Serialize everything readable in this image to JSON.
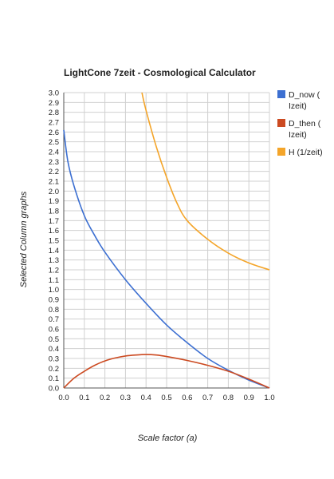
{
  "chart_data": {
    "type": "line",
    "title": "LightCone 7zeit - Cosmological Calculator",
    "xlabel": "Scale factor (a)",
    "ylabel": "Selected Column graphs",
    "xlim": [
      0,
      1
    ],
    "ylim": [
      0,
      3
    ],
    "x_ticks": [
      "0.0",
      "0.1",
      "0.2",
      "0.3",
      "0.4",
      "0.5",
      "0.6",
      "0.7",
      "0.8",
      "0.9",
      "1.0"
    ],
    "y_ticks": [
      "0.0",
      "0.1",
      "0.2",
      "0.3",
      "0.4",
      "0.5",
      "0.6",
      "0.7",
      "0.8",
      "0.9",
      "1.0",
      "1.1",
      "1.2",
      "1.3",
      "1.4",
      "1.5",
      "1.6",
      "1.7",
      "1.8",
      "1.9",
      "2.0",
      "2.1",
      "2.2",
      "2.3",
      "2.4",
      "2.5",
      "2.6",
      "2.7",
      "2.8",
      "2.9",
      "3.0"
    ],
    "grid": true,
    "legend_position": "right",
    "series": [
      {
        "name": "D_now ( Izeit)",
        "color": "#3c6fd1",
        "x": [
          0.0,
          0.02,
          0.05,
          0.1,
          0.15,
          0.2,
          0.3,
          0.4,
          0.5,
          0.6,
          0.7,
          0.8,
          0.9,
          1.0
        ],
        "y": [
          2.62,
          2.3,
          2.05,
          1.75,
          1.55,
          1.38,
          1.1,
          0.86,
          0.64,
          0.46,
          0.3,
          0.18,
          0.08,
          0.0
        ]
      },
      {
        "name": "D_then ( Izeit)",
        "color": "#cc4a21",
        "x": [
          0.0,
          0.05,
          0.1,
          0.15,
          0.2,
          0.25,
          0.3,
          0.35,
          0.4,
          0.45,
          0.5,
          0.6,
          0.7,
          0.8,
          0.9,
          1.0
        ],
        "y": [
          0.0,
          0.1,
          0.17,
          0.23,
          0.275,
          0.305,
          0.325,
          0.335,
          0.34,
          0.335,
          0.32,
          0.28,
          0.23,
          0.17,
          0.09,
          0.0
        ]
      },
      {
        "name": "H (1/zeit)",
        "color": "#f4a52a",
        "x": [
          0.38,
          0.4,
          0.45,
          0.5,
          0.55,
          0.6,
          0.7,
          0.8,
          0.9,
          1.0
        ],
        "y": [
          3.0,
          2.82,
          2.45,
          2.14,
          1.88,
          1.7,
          1.51,
          1.37,
          1.27,
          1.2
        ]
      }
    ]
  }
}
